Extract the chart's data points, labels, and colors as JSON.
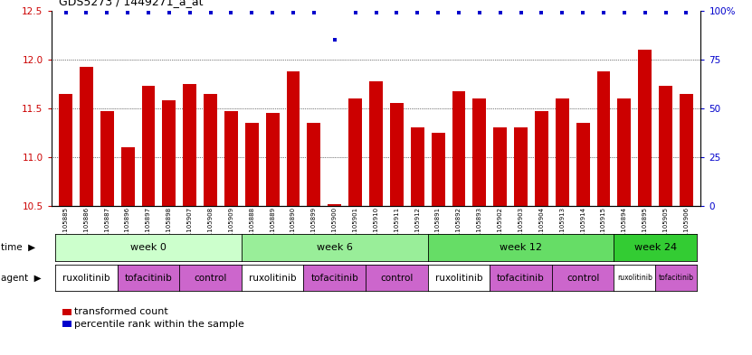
{
  "title": "GDS5273 / 1449271_a_at",
  "samples": [
    "GSM1105885",
    "GSM1105886",
    "GSM1105887",
    "GSM1105896",
    "GSM1105897",
    "GSM1105898",
    "GSM1105907",
    "GSM1105908",
    "GSM1105909",
    "GSM1105888",
    "GSM1105889",
    "GSM1105890",
    "GSM1105899",
    "GSM1105900",
    "GSM1105901",
    "GSM1105910",
    "GSM1105911",
    "GSM1105912",
    "GSM1105891",
    "GSM1105892",
    "GSM1105893",
    "GSM1105902",
    "GSM1105903",
    "GSM1105904",
    "GSM1105913",
    "GSM1105914",
    "GSM1105915",
    "GSM1105894",
    "GSM1105895",
    "GSM1105905",
    "GSM1105906"
  ],
  "bar_values": [
    11.65,
    11.92,
    11.47,
    11.1,
    11.73,
    11.58,
    11.75,
    11.65,
    11.47,
    11.35,
    11.45,
    11.88,
    11.35,
    10.52,
    11.6,
    11.78,
    11.55,
    11.3,
    11.25,
    11.67,
    11.6,
    11.3,
    11.3,
    11.47,
    11.6,
    11.35,
    11.88,
    11.6,
    12.1,
    11.73,
    11.65
  ],
  "percentile_values": [
    99,
    99,
    99,
    99,
    99,
    99,
    99,
    99,
    99,
    99,
    99,
    99,
    99,
    85,
    99,
    99,
    99,
    99,
    99,
    99,
    99,
    99,
    99,
    99,
    99,
    99,
    99,
    99,
    99,
    99,
    99
  ],
  "bar_color": "#cc0000",
  "dot_color": "#0000cc",
  "ylim_left": [
    10.5,
    12.5
  ],
  "ylim_right": [
    0,
    100
  ],
  "yticks_left": [
    10.5,
    11.0,
    11.5,
    12.0,
    12.5
  ],
  "yticks_right": [
    0,
    25,
    50,
    75,
    100
  ],
  "grid_values": [
    11.0,
    11.5,
    12.0
  ],
  "time_groups": [
    {
      "label": "week 0",
      "start": 0,
      "end": 9,
      "color": "#ccffcc"
    },
    {
      "label": "week 6",
      "start": 9,
      "end": 18,
      "color": "#99ee99"
    },
    {
      "label": "week 12",
      "start": 18,
      "end": 27,
      "color": "#66dd66"
    },
    {
      "label": "week 24",
      "start": 27,
      "end": 31,
      "color": "#33cc33"
    }
  ],
  "agent_groups": [
    {
      "label": "ruxolitinib",
      "start": 0,
      "end": 3,
      "color": "#ffffff"
    },
    {
      "label": "tofacitinib",
      "start": 3,
      "end": 6,
      "color": "#dd77dd"
    },
    {
      "label": "control",
      "start": 6,
      "end": 9,
      "color": "#dd77dd"
    },
    {
      "label": "ruxolitinib",
      "start": 9,
      "end": 12,
      "color": "#ffffff"
    },
    {
      "label": "tofacitinib",
      "start": 12,
      "end": 15,
      "color": "#dd77dd"
    },
    {
      "label": "control",
      "start": 15,
      "end": 18,
      "color": "#dd77dd"
    },
    {
      "label": "ruxolitinib",
      "start": 18,
      "end": 21,
      "color": "#ffffff"
    },
    {
      "label": "tofacitinib",
      "start": 21,
      "end": 24,
      "color": "#dd77dd"
    },
    {
      "label": "control",
      "start": 24,
      "end": 27,
      "color": "#dd77dd"
    },
    {
      "label": "ruxolitinib",
      "start": 27,
      "end": 29,
      "color": "#ffffff"
    },
    {
      "label": "tofacitinib",
      "start": 29,
      "end": 31,
      "color": "#dd77dd"
    }
  ],
  "legend_bar_label": "transformed count",
  "legend_dot_label": "percentile rank within the sample",
  "left_axis_color": "#cc0000",
  "right_axis_color": "#0000cc"
}
